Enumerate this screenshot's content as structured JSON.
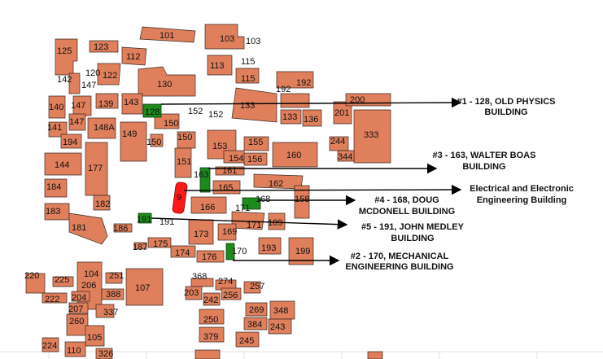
{
  "map_title": "",
  "highlighted": {
    "b128": "128",
    "b163": "163",
    "b168": "168",
    "b191": "191",
    "b170": "170",
    "b9": "9"
  },
  "annotations": {
    "a1_line1": "#1 - 128, OLD PHYSICS",
    "a1_line2": "BUILDING",
    "a3_line1": "#3 - 163, WALTER BOAS",
    "a3_line2": "BUILDING",
    "ae_line1": "Electrical and Electronic",
    "ae_line2": "Engineering Building",
    "a4_line1": "#4 - 168, DOUG",
    "a4_line2": "MCDONELL BUILDING",
    "a5_line1": "#5 - 191, JOHN MEDLEY",
    "a5_line2": "BUILDING",
    "a2_line1": "#2 - 170, MECHANICAL",
    "a2_line2": "ENGINEERING BUILDING"
  },
  "building_labels": {
    "l101": "101",
    "l103a": "103",
    "l103b": "103",
    "l123": "123",
    "l125": "125",
    "l112": "112",
    "l113": "113",
    "l115a": "115",
    "l115b": "115",
    "l120": "120",
    "l122": "122",
    "l142": "142",
    "l147a": "147",
    "l130": "130",
    "l192a": "192",
    "l192b": "192",
    "l140": "140",
    "l147b": "147",
    "l139": "139",
    "l143": "143",
    "l152a": "152",
    "l152b": "152",
    "l133a": "133",
    "l133b": "133",
    "l136": "136",
    "l201": "201",
    "l200": "200",
    "l141": "141",
    "l147c": "147",
    "l148A": "148A",
    "l150a": "150",
    "l150b": "150",
    "l333": "333",
    "l194": "194",
    "l149": "149",
    "l150c": "150",
    "l153": "153",
    "l155": "155",
    "l154": "154",
    "l156": "156",
    "l244": "244",
    "l344": "344",
    "l160": "160",
    "l144": "144",
    "l177": "177",
    "l151": "151",
    "l161": "161",
    "l162": "162",
    "l184": "184",
    "l165": "165",
    "l158": "158",
    "l182": "182",
    "l166": "166",
    "l171a": "171",
    "l171b": "171",
    "l183": "183",
    "l189": "189",
    "l181": "181",
    "l186": "186",
    "l173": "173",
    "l169": "169",
    "l187": "187",
    "l175": "175",
    "l174": "174",
    "l176": "176",
    "l193": "193",
    "l199": "199",
    "l220": "220",
    "l225": "225",
    "l104": "104",
    "l206": "206",
    "l251": "251",
    "l107": "107",
    "l368": "368",
    "l274": "274",
    "l257": "257",
    "l222": "222",
    "l204": "204",
    "l388": "388",
    "l203": "203",
    "l242": "242",
    "l256": "256",
    "l207": "207",
    "l337": "337",
    "l269": "269",
    "l348": "348",
    "l260": "260",
    "l250": "250",
    "l384": "384",
    "l243": "243",
    "l105": "105",
    "l379": "379",
    "l245": "245",
    "l224": "224",
    "l110": "110",
    "l326": "326"
  },
  "colors": {
    "building": "#e07f5c",
    "highlight_green": "#1d8a1d",
    "highlight_red": "#ff1a1a"
  }
}
